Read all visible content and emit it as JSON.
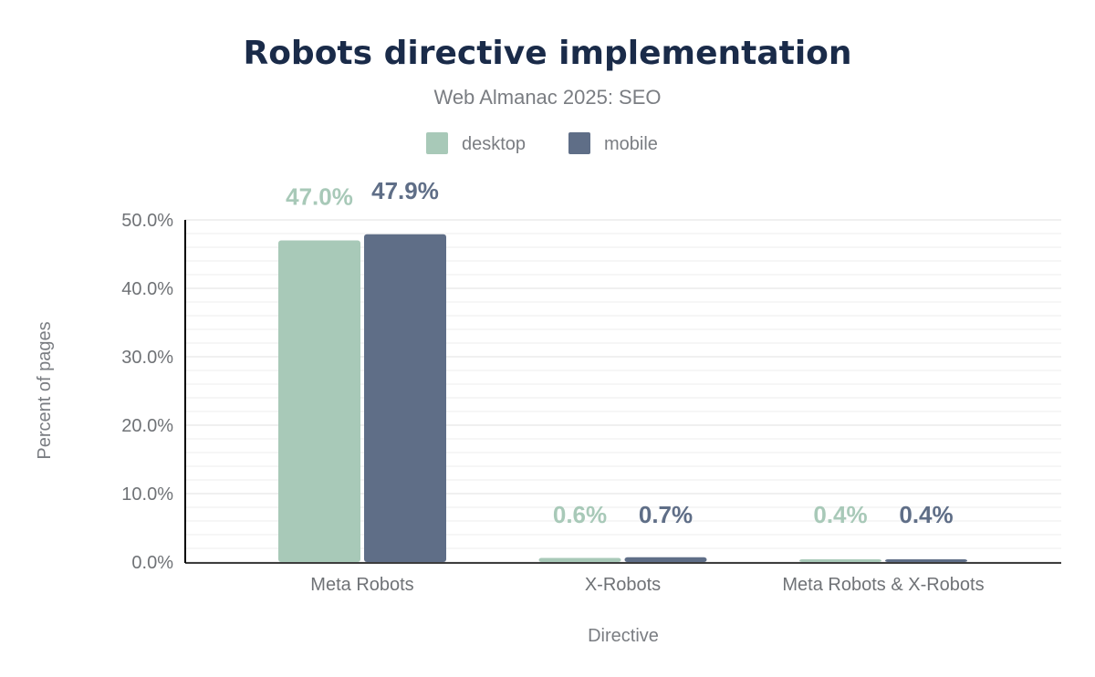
{
  "chart_data": {
    "type": "bar",
    "title": "Robots directive implementation",
    "subtitle": "Web Almanac 2025: SEO",
    "xlabel": "Directive",
    "ylabel": "Percent of pages",
    "categories": [
      "Meta Robots",
      "X-Robots",
      "Meta Robots & X-Robots"
    ],
    "series": [
      {
        "name": "desktop",
        "color": "#a8c9b8",
        "values": [
          47.0,
          0.6,
          0.4
        ],
        "labels": [
          "47.0%",
          "0.6%",
          "0.4%"
        ]
      },
      {
        "name": "mobile",
        "color": "#5f6e87",
        "values": [
          47.9,
          0.7,
          0.4
        ],
        "labels": [
          "47.9%",
          "0.7%",
          "0.4%"
        ]
      }
    ],
    "ylim": [
      0,
      50
    ],
    "yticks": [
      "0.0%",
      "10.0%",
      "20.0%",
      "30.0%",
      "40.0%",
      "50.0%"
    ],
    "ytick_values": [
      0,
      10,
      20,
      30,
      40,
      50
    ],
    "grid": true,
    "legend": "top-center"
  }
}
